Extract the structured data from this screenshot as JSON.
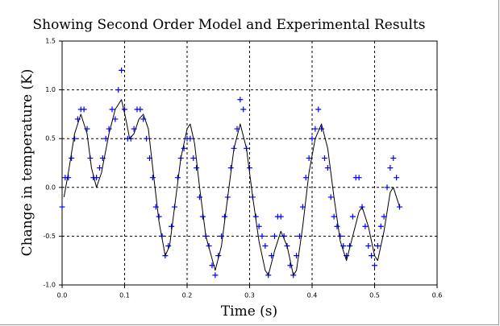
{
  "chart_data": {
    "type": "scatter",
    "title": "Showing Second Order Model and Experimental Results",
    "x_label": "Time (s)",
    "y_label": "Change in temperature (K)",
    "xlim": [
      0,
      0.6
    ],
    "ylim": [
      -1,
      1.5
    ],
    "xticks": [
      {
        "value": 0,
        "label": "0.0"
      },
      0.1,
      0.2,
      0.3,
      0.4,
      0.5,
      0.6
    ],
    "yticks": [
      {
        "value": -1,
        "label": "-1.0"
      },
      -0.5,
      {
        "value": 0,
        "label": "0.0"
      },
      0.5,
      {
        "value": 1,
        "label": "1.0"
      },
      1.5
    ],
    "grid": true,
    "series": [
      {
        "type": "scatter",
        "marker": "plus",
        "color": "#0000ff",
        "x": [
          0,
          0.005,
          0.01,
          0.015,
          0.02,
          0.025,
          0.03,
          0.035,
          0.04,
          0.045,
          0.05,
          0.055,
          0.06,
          0.065,
          0.07,
          0.075,
          0.08,
          0.085,
          0.09,
          0.095,
          0.1,
          0.105,
          0.11,
          0.115,
          0.12,
          0.125,
          0.13,
          0.135,
          0.14,
          0.145,
          0.15,
          0.155,
          0.16,
          0.165,
          0.17,
          0.175,
          0.18,
          0.185,
          0.19,
          0.195,
          0.2,
          0.205,
          0.21,
          0.215,
          0.22,
          0.225,
          0.23,
          0.235,
          0.24,
          0.245,
          0.25,
          0.255,
          0.26,
          0.265,
          0.27,
          0.275,
          0.28,
          0.285,
          0.29,
          0.295,
          0.3,
          0.305,
          0.31,
          0.315,
          0.32,
          0.325,
          0.33,
          0.335,
          0.34,
          0.345,
          0.35,
          0.355,
          0.36,
          0.365,
          0.37,
          0.375,
          0.38,
          0.385,
          0.39,
          0.395,
          0.4,
          0.405,
          0.41,
          0.415,
          0.42,
          0.425,
          0.43,
          0.435,
          0.44,
          0.445,
          0.45,
          0.455,
          0.46,
          0.465,
          0.47,
          0.475,
          0.48,
          0.485,
          0.49,
          0.495,
          0.5,
          0.505,
          0.51,
          0.515,
          0.52,
          0.525,
          0.53,
          0.535,
          0.54
        ],
        "values": [
          -0.2,
          0.1,
          0.1,
          0.3,
          0.5,
          0.7,
          0.8,
          0.8,
          0.6,
          0.3,
          0.1,
          0.1,
          0.2,
          0.3,
          0.5,
          0.6,
          0.8,
          0.7,
          1.0,
          1.2,
          0.8,
          0.5,
          0.5,
          0.6,
          0.8,
          0.8,
          0.7,
          0.5,
          0.3,
          0.1,
          -0.2,
          -0.3,
          -0.5,
          -0.7,
          -0.6,
          -0.4,
          -0.2,
          0.1,
          0.3,
          0.4,
          0.5,
          0.5,
          0.3,
          0.2,
          -0.1,
          -0.3,
          -0.5,
          -0.6,
          -0.8,
          -0.9,
          -0.7,
          -0.5,
          -0.3,
          -0.1,
          0.2,
          0.4,
          0.6,
          0.9,
          0.8,
          0.4,
          0.2,
          -0.1,
          -0.3,
          -0.4,
          -0.5,
          -0.6,
          -0.9,
          -0.7,
          -0.5,
          -0.3,
          -0.3,
          -0.5,
          -0.6,
          -0.8,
          -0.9,
          -0.7,
          -0.5,
          -0.2,
          0.1,
          0.3,
          0.5,
          0.6,
          0.8,
          0.6,
          0.3,
          0.2,
          -0.1,
          -0.3,
          -0.4,
          -0.5,
          -0.6,
          -0.7,
          -0.6,
          -0.3,
          0.1,
          0.1,
          -0.2,
          -0.4,
          -0.6,
          -0.7,
          -0.8,
          -0.6,
          -0.4,
          -0.3,
          0.0,
          0.2,
          0.3,
          0.1,
          -0.2
        ]
      },
      {
        "type": "line",
        "color": "#000000",
        "x": [
          0.003,
          0.01,
          0.02,
          0.03,
          0.04,
          0.047,
          0.055,
          0.063,
          0.075,
          0.085,
          0.095,
          0.102,
          0.108,
          0.115,
          0.123,
          0.13,
          0.138,
          0.145,
          0.155,
          0.165,
          0.172,
          0.18,
          0.19,
          0.2,
          0.205,
          0.212,
          0.22,
          0.23,
          0.245,
          0.255,
          0.265,
          0.275,
          0.285,
          0.295,
          0.305,
          0.315,
          0.325,
          0.33,
          0.34,
          0.35,
          0.36,
          0.37,
          0.375,
          0.385,
          0.395,
          0.405,
          0.415,
          0.425,
          0.435,
          0.445,
          0.455,
          0.465,
          0.475,
          0.48,
          0.49,
          0.5,
          0.505,
          0.515,
          0.525,
          0.53,
          0.535,
          0.54
        ],
        "values": [
          -0.1,
          0.15,
          0.55,
          0.75,
          0.55,
          0.2,
          0.0,
          0.15,
          0.55,
          0.8,
          0.9,
          0.7,
          0.5,
          0.55,
          0.7,
          0.75,
          0.6,
          0.2,
          -0.35,
          -0.7,
          -0.6,
          -0.2,
          0.3,
          0.6,
          0.65,
          0.45,
          0.0,
          -0.5,
          -0.85,
          -0.6,
          -0.1,
          0.4,
          0.65,
          0.4,
          -0.1,
          -0.55,
          -0.85,
          -0.9,
          -0.65,
          -0.45,
          -0.6,
          -0.9,
          -0.85,
          -0.4,
          0.15,
          0.5,
          0.65,
          0.4,
          -0.1,
          -0.55,
          -0.75,
          -0.5,
          -0.25,
          -0.2,
          -0.4,
          -0.7,
          -0.75,
          -0.45,
          -0.05,
          0.0,
          -0.1,
          -0.2
        ]
      }
    ]
  }
}
